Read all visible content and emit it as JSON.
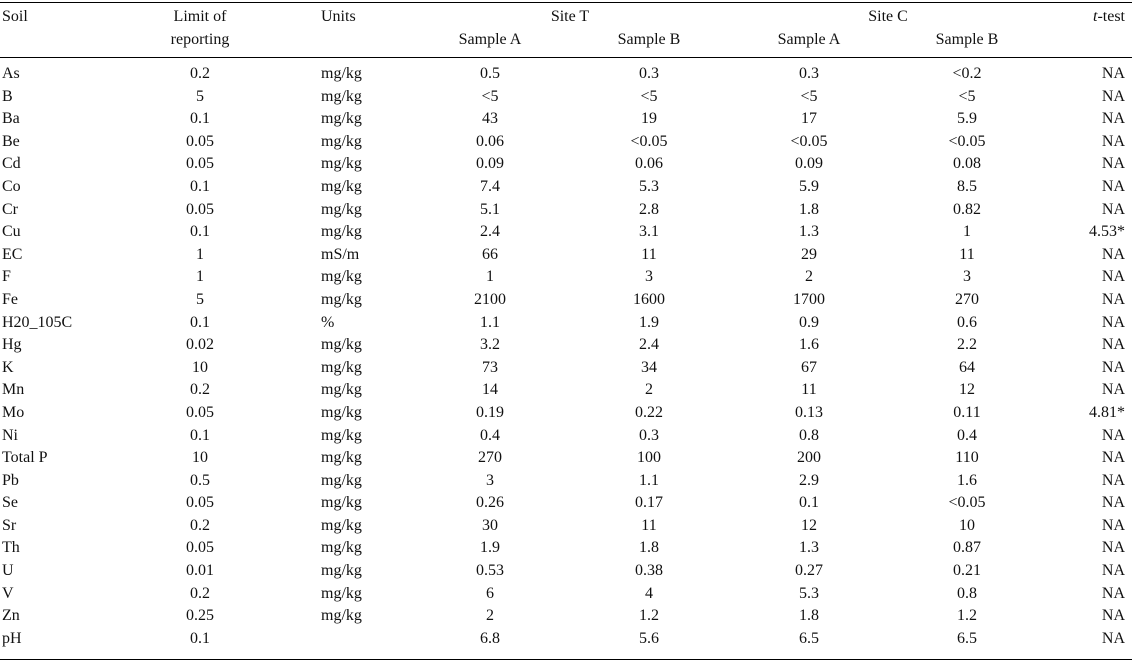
{
  "header": {
    "soil": "Soil",
    "limit_line1": "Limit of",
    "limit_line2": "reporting",
    "units": "Units",
    "site_t": "Site T",
    "site_c": "Site C",
    "sample_a": "Sample A",
    "sample_b": "Sample B",
    "t_test_italic": "t",
    "t_test_rest": "-test"
  },
  "rows": [
    {
      "soil": "As",
      "limit": "0.2",
      "units": "mg/kg",
      "ta": "0.5",
      "tb": "0.3",
      "ca": "0.3",
      "cb": "<0.2",
      "t": "NA"
    },
    {
      "soil": "B",
      "limit": "5",
      "units": "mg/kg",
      "ta": "<5",
      "tb": "<5",
      "ca": "<5",
      "cb": "<5",
      "t": "NA"
    },
    {
      "soil": "Ba",
      "limit": "0.1",
      "units": "mg/kg",
      "ta": "43",
      "tb": "19",
      "ca": "17",
      "cb": "5.9",
      "t": "NA"
    },
    {
      "soil": "Be",
      "limit": "0.05",
      "units": "mg/kg",
      "ta": "0.06",
      "tb": "<0.05",
      "ca": "<0.05",
      "cb": "<0.05",
      "t": "NA"
    },
    {
      "soil": "Cd",
      "limit": "0.05",
      "units": "mg/kg",
      "ta": "0.09",
      "tb": "0.06",
      "ca": "0.09",
      "cb": "0.08",
      "t": "NA"
    },
    {
      "soil": "Co",
      "limit": "0.1",
      "units": "mg/kg",
      "ta": "7.4",
      "tb": "5.3",
      "ca": "5.9",
      "cb": "8.5",
      "t": "NA"
    },
    {
      "soil": "Cr",
      "limit": "0.05",
      "units": "mg/kg",
      "ta": "5.1",
      "tb": "2.8",
      "ca": "1.8",
      "cb": "0.82",
      "t": "NA"
    },
    {
      "soil": "Cu",
      "limit": "0.1",
      "units": "mg/kg",
      "ta": "2.4",
      "tb": "3.1",
      "ca": "1.3",
      "cb": "1",
      "t": "4.53*"
    },
    {
      "soil": "EC",
      "limit": "1",
      "units": "mS/m",
      "ta": "66",
      "tb": "11",
      "ca": "29",
      "cb": "11",
      "t": "NA"
    },
    {
      "soil": "F",
      "limit": "1",
      "units": "mg/kg",
      "ta": "1",
      "tb": "3",
      "ca": "2",
      "cb": "3",
      "t": "NA"
    },
    {
      "soil": "Fe",
      "limit": "5",
      "units": "mg/kg",
      "ta": "2100",
      "tb": "1600",
      "ca": "1700",
      "cb": "270",
      "t": "NA"
    },
    {
      "soil": "H20_105C",
      "limit": "0.1",
      "units": "%",
      "ta": "1.1",
      "tb": "1.9",
      "ca": "0.9",
      "cb": "0.6",
      "t": "NA"
    },
    {
      "soil": "Hg",
      "limit": "0.02",
      "units": "mg/kg",
      "ta": "3.2",
      "tb": "2.4",
      "ca": "1.6",
      "cb": "2.2",
      "t": "NA"
    },
    {
      "soil": "K",
      "limit": "10",
      "units": "mg/kg",
      "ta": "73",
      "tb": "34",
      "ca": "67",
      "cb": "64",
      "t": "NA"
    },
    {
      "soil": "Mn",
      "limit": "0.2",
      "units": "mg/kg",
      "ta": "14",
      "tb": "2",
      "ca": "11",
      "cb": "12",
      "t": "NA"
    },
    {
      "soil": "Mo",
      "limit": "0.05",
      "units": "mg/kg",
      "ta": "0.19",
      "tb": "0.22",
      "ca": "0.13",
      "cb": "0.11",
      "t": "4.81*"
    },
    {
      "soil": "Ni",
      "limit": "0.1",
      "units": "mg/kg",
      "ta": "0.4",
      "tb": "0.3",
      "ca": "0.8",
      "cb": "0.4",
      "t": "NA"
    },
    {
      "soil": "Total P",
      "limit": "10",
      "units": "mg/kg",
      "ta": "270",
      "tb": "100",
      "ca": "200",
      "cb": "110",
      "t": "NA"
    },
    {
      "soil": "Pb",
      "limit": "0.5",
      "units": "mg/kg",
      "ta": "3",
      "tb": "1.1",
      "ca": "2.9",
      "cb": "1.6",
      "t": "NA"
    },
    {
      "soil": "Se",
      "limit": "0.05",
      "units": "mg/kg",
      "ta": "0.26",
      "tb": "0.17",
      "ca": "0.1",
      "cb": "<0.05",
      "t": "NA"
    },
    {
      "soil": "Sr",
      "limit": "0.2",
      "units": "mg/kg",
      "ta": "30",
      "tb": "11",
      "ca": "12",
      "cb": "10",
      "t": "NA"
    },
    {
      "soil": "Th",
      "limit": "0.05",
      "units": "mg/kg",
      "ta": "1.9",
      "tb": "1.8",
      "ca": "1.3",
      "cb": "0.87",
      "t": "NA"
    },
    {
      "soil": "U",
      "limit": "0.01",
      "units": "mg/kg",
      "ta": "0.53",
      "tb": "0.38",
      "ca": "0.27",
      "cb": "0.21",
      "t": "NA"
    },
    {
      "soil": "V",
      "limit": "0.2",
      "units": "mg/kg",
      "ta": "6",
      "tb": "4",
      "ca": "5.3",
      "cb": "0.8",
      "t": "NA"
    },
    {
      "soil": "Zn",
      "limit": "0.25",
      "units": "mg/kg",
      "ta": "2",
      "tb": "1.2",
      "ca": "1.8",
      "cb": "1.2",
      "t": "NA"
    },
    {
      "soil": "pH",
      "limit": "0.1",
      "units": "",
      "ta": "6.8",
      "tb": "5.6",
      "ca": "6.5",
      "cb": "6.5",
      "t": "NA"
    }
  ]
}
